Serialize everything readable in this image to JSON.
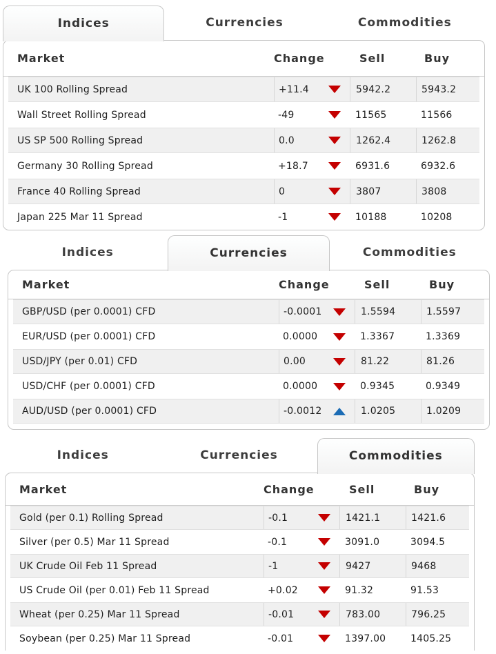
{
  "colors": {
    "down_arrow": "#c40000",
    "up_arrow": "#1c6cb5",
    "stripe": "#f0f0f0",
    "tab_border": "#c6c6c6"
  },
  "columns": {
    "market": "Market",
    "change": "Change",
    "sell": "Sell",
    "buy": "Buy"
  },
  "panels": [
    {
      "name": "indices",
      "tabs": [
        {
          "label": "Indices",
          "active": true
        },
        {
          "label": "Currencies",
          "active": false
        },
        {
          "label": "Commodities",
          "active": false
        }
      ],
      "rows": [
        {
          "market": "UK 100 Rolling Spread",
          "change": "+11.4",
          "trend": "down",
          "sell": "5942.2",
          "buy": "5943.2"
        },
        {
          "market": "Wall Street Rolling Spread",
          "change": "-49",
          "trend": "down",
          "sell": "11565",
          "buy": "11566"
        },
        {
          "market": "US SP 500 Rolling Spread",
          "change": "0.0",
          "trend": "down",
          "sell": "1262.4",
          "buy": "1262.8"
        },
        {
          "market": "Germany 30 Rolling Spread",
          "change": "+18.7",
          "trend": "down",
          "sell": "6931.6",
          "buy": "6932.6"
        },
        {
          "market": "France 40 Rolling Spread",
          "change": "0",
          "trend": "down",
          "sell": "3807",
          "buy": "3808"
        },
        {
          "market": "Japan 225 Mar 11 Spread",
          "change": "-1",
          "trend": "down",
          "sell": "10188",
          "buy": "10208"
        }
      ]
    },
    {
      "name": "currencies",
      "tabs": [
        {
          "label": "Indices",
          "active": false
        },
        {
          "label": "Currencies",
          "active": true
        },
        {
          "label": "Commodities",
          "active": false
        }
      ],
      "rows": [
        {
          "market": "GBP/USD (per 0.0001) CFD",
          "change": "-0.0001",
          "trend": "down",
          "sell": "1.5594",
          "buy": "1.5597"
        },
        {
          "market": "EUR/USD (per 0.0001) CFD",
          "change": "0.0000",
          "trend": "down",
          "sell": "1.3367",
          "buy": "1.3369"
        },
        {
          "market": "USD/JPY (per 0.01) CFD",
          "change": "0.00",
          "trend": "down",
          "sell": "81.22",
          "buy": "81.26"
        },
        {
          "market": "USD/CHF (per 0.0001) CFD",
          "change": "0.0000",
          "trend": "down",
          "sell": "0.9345",
          "buy": "0.9349"
        },
        {
          "market": "AUD/USD (per 0.0001) CFD",
          "change": "-0.0012",
          "trend": "up",
          "sell": "1.0205",
          "buy": "1.0209"
        }
      ]
    },
    {
      "name": "commodities",
      "tabs": [
        {
          "label": "Indices",
          "active": false
        },
        {
          "label": "Currencies",
          "active": false
        },
        {
          "label": "Commodities",
          "active": true
        }
      ],
      "rows": [
        {
          "market": "Gold (per 0.1) Rolling Spread",
          "change": "-0.1",
          "trend": "down",
          "sell": "1421.1",
          "buy": "1421.6"
        },
        {
          "market": "Silver (per 0.5) Mar 11 Spread",
          "change": "-0.1",
          "trend": "down",
          "sell": "3091.0",
          "buy": "3094.5"
        },
        {
          "market": "UK Crude Oil Feb 11 Spread",
          "change": "-1",
          "trend": "down",
          "sell": "9427",
          "buy": "9468"
        },
        {
          "market": "US Crude Oil (per 0.01) Feb 11 Spread",
          "change": "+0.02",
          "trend": "down",
          "sell": "91.32",
          "buy": "91.53"
        },
        {
          "market": "Wheat (per 0.25) Mar 11 Spread",
          "change": "-0.01",
          "trend": "down",
          "sell": "783.00",
          "buy": "796.25"
        },
        {
          "market": "Soybean (per 0.25) Mar 11 Spread",
          "change": "-0.01",
          "trend": "down",
          "sell": "1397.00",
          "buy": "1405.25"
        }
      ]
    }
  ]
}
